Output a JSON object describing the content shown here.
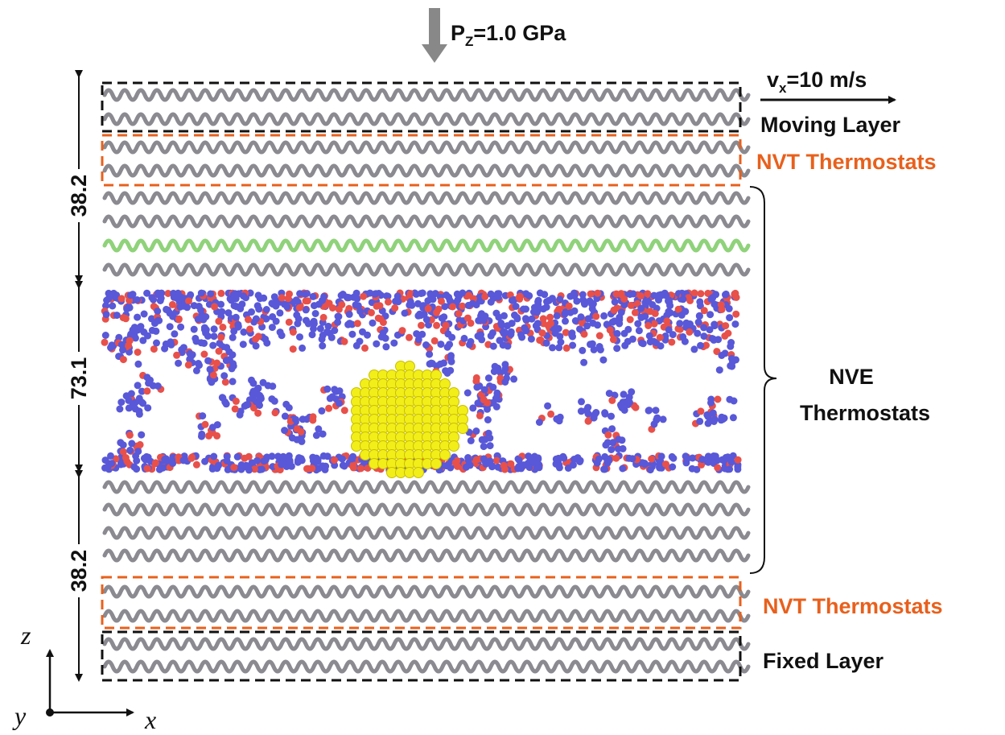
{
  "pressure": {
    "symbol": "P",
    "subscript": "Z",
    "text": "=1.0 GPa"
  },
  "velocity": {
    "symbol": "v",
    "subscript": "x",
    "text": "=10 m/s"
  },
  "regions": {
    "moving": "Moving Layer",
    "nvt_top": "NVT Thermostats",
    "nve_line1": "NVE",
    "nve_line2": "Thermostats",
    "nvt_bottom": "NVT Thermostats",
    "fixed": "Fixed Layer"
  },
  "dimensions": [
    38.2,
    73.1,
    38.2
  ],
  "axes": {
    "z": "z",
    "y": "y",
    "x": "x"
  }
}
